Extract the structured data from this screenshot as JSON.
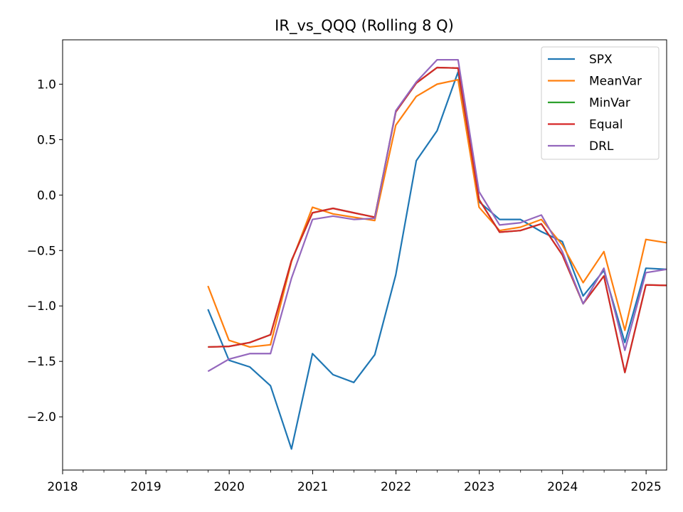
{
  "chart_data": {
    "type": "line",
    "title": "IR_vs_QQQ (Rolling 8 Q)",
    "xlabel": "",
    "ylabel": "",
    "xlim": [
      "2018-01-01",
      "2025-04-01"
    ],
    "ylim": [
      -2.48,
      1.4
    ],
    "x_ticks": [
      "2018",
      "2019",
      "2020",
      "2021",
      "2022",
      "2023",
      "2024",
      "2025"
    ],
    "y_ticks": [
      1.0,
      0.5,
      0.0,
      -0.5,
      -1.0,
      -1.5,
      -2.0
    ],
    "y_tick_labels": [
      "1.0",
      "0.5",
      "0.0",
      "−0.5",
      "−1.0",
      "−1.5",
      "−2.0"
    ],
    "grid": false,
    "legend_position": "top-right",
    "x": [
      "2019-09-30",
      "2019-12-31",
      "2020-03-31",
      "2020-06-30",
      "2020-09-30",
      "2020-12-31",
      "2021-03-31",
      "2021-06-30",
      "2021-09-30",
      "2021-12-31",
      "2022-03-31",
      "2022-06-30",
      "2022-09-30",
      "2022-12-31",
      "2023-03-31",
      "2023-06-30",
      "2023-09-30",
      "2023-12-31",
      "2024-03-31",
      "2024-06-30",
      "2024-09-30",
      "2024-12-31",
      "2025-03-31"
    ],
    "series": [
      {
        "name": "SPX",
        "color": "#1f77b4",
        "values": [
          -1.03,
          -1.49,
          -1.55,
          -1.72,
          -2.29,
          -1.43,
          -1.62,
          -1.69,
          -1.44,
          -0.72,
          0.31,
          0.58,
          1.11,
          -0.06,
          -0.22,
          -0.22,
          -0.33,
          -0.42,
          -0.91,
          -0.68,
          -1.33,
          -0.66,
          -0.67
        ]
      },
      {
        "name": "MeanVar",
        "color": "#ff7f0e",
        "values": [
          -0.82,
          -1.31,
          -1.37,
          -1.35,
          -0.6,
          -0.11,
          -0.17,
          -0.2,
          -0.23,
          0.63,
          0.89,
          1.0,
          1.04,
          -0.11,
          -0.32,
          -0.29,
          -0.22,
          -0.45,
          -0.79,
          -0.51,
          -1.22,
          -0.4,
          -0.43
        ]
      },
      {
        "name": "MinVar",
        "color": "#2ca02c",
        "values": [
          -1.37,
          -1.365,
          -1.33,
          -1.26,
          -0.59,
          -0.16,
          -0.12,
          -0.16,
          -0.2,
          0.75,
          1.01,
          1.15,
          1.145,
          -0.04,
          -0.335,
          -0.32,
          -0.26,
          -0.54,
          -0.98,
          -0.73,
          -1.6,
          -0.81,
          -0.815
        ]
      },
      {
        "name": "Equal",
        "color": "#d62728",
        "values": [
          -1.37,
          -1.365,
          -1.33,
          -1.26,
          -0.59,
          -0.16,
          -0.12,
          -0.16,
          -0.2,
          0.75,
          1.01,
          1.15,
          1.145,
          -0.04,
          -0.335,
          -0.32,
          -0.26,
          -0.54,
          -0.98,
          -0.73,
          -1.6,
          -0.81,
          -0.815
        ]
      },
      {
        "name": "DRL",
        "color": "#9467bd",
        "values": [
          -1.59,
          -1.48,
          -1.43,
          -1.43,
          -0.75,
          -0.22,
          -0.19,
          -0.22,
          -0.21,
          0.76,
          1.02,
          1.22,
          1.22,
          0.03,
          -0.27,
          -0.25,
          -0.18,
          -0.51,
          -0.98,
          -0.66,
          -1.4,
          -0.7,
          -0.67
        ]
      }
    ]
  }
}
